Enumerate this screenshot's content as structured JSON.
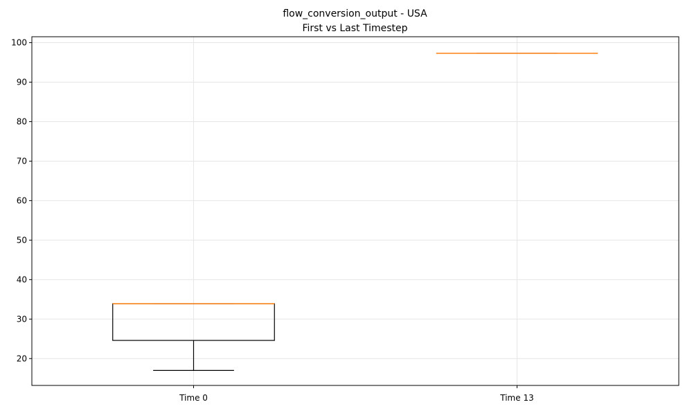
{
  "chart_data": {
    "type": "box",
    "title": "flow_conversion_output - USA",
    "subtitle": "First vs Last Timestep",
    "xlabel": "",
    "ylabel": "",
    "categories": [
      "Time 0",
      "Time 13"
    ],
    "boxes": [
      {
        "label": "Time 0",
        "whisker_low": 17.0,
        "q1": 24.6,
        "median": 33.9,
        "q3": 33.9,
        "whisker_high": 33.9
      },
      {
        "label": "Time 13",
        "whisker_low": 97.3,
        "q1": 97.3,
        "median": 97.3,
        "q3": 97.3,
        "whisker_high": 97.3
      }
    ],
    "ylim": [
      13.2,
      101.5
    ],
    "yticks": [
      20,
      30,
      40,
      50,
      60,
      70,
      80,
      90,
      100
    ],
    "grid": true,
    "colors": {
      "box": "#000000",
      "median": "#ff7f0e",
      "grid": "#e6e6e6"
    }
  }
}
